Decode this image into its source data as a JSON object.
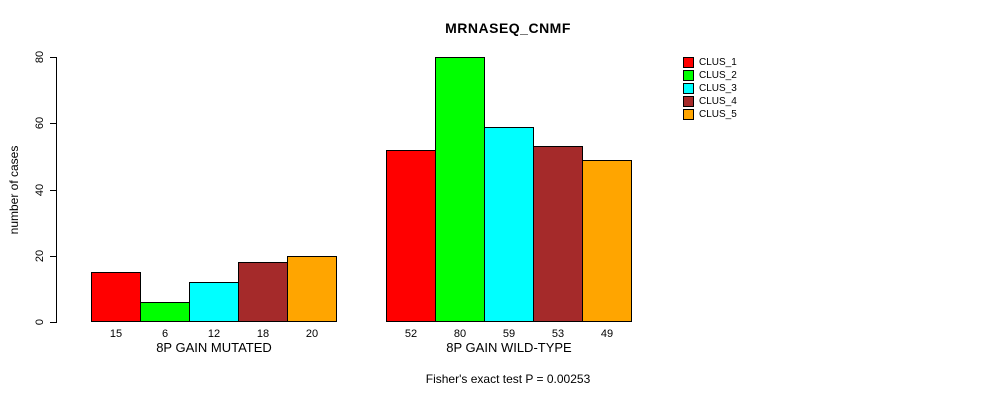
{
  "chart_data": {
    "type": "bar",
    "title": "MRNASEQ_CNMF",
    "xlabel": "",
    "ylabel": "number of cases",
    "ylim": [
      0,
      80
    ],
    "yticks": [
      0,
      20,
      40,
      60,
      80
    ],
    "grid": false,
    "background": "#FFFFFF",
    "categories": [
      "8P GAIN MUTATED",
      "8P GAIN WILD-TYPE"
    ],
    "series": [
      {
        "name": "CLUS_1",
        "color": "#FF0000",
        "values": [
          15,
          52
        ]
      },
      {
        "name": "CLUS_2",
        "color": "#00FF00",
        "values": [
          6,
          80
        ]
      },
      {
        "name": "CLUS_3",
        "color": "#00FFFF",
        "values": [
          12,
          59
        ]
      },
      {
        "name": "CLUS_4",
        "color": "#A52A2A",
        "values": [
          18,
          53
        ]
      },
      {
        "name": "CLUS_5",
        "color": "#FFA500",
        "values": [
          20,
          49
        ]
      }
    ],
    "bar_value_labels": [
      [
        15,
        6,
        12,
        18,
        20
      ],
      [
        52,
        80,
        59,
        53,
        49
      ]
    ],
    "legend": {
      "position": "right",
      "entries": [
        "CLUS_1",
        "CLUS_2",
        "CLUS_3",
        "CLUS_4",
        "CLUS_5"
      ]
    },
    "annotation": "Fisher's exact test P = 0.00253"
  }
}
